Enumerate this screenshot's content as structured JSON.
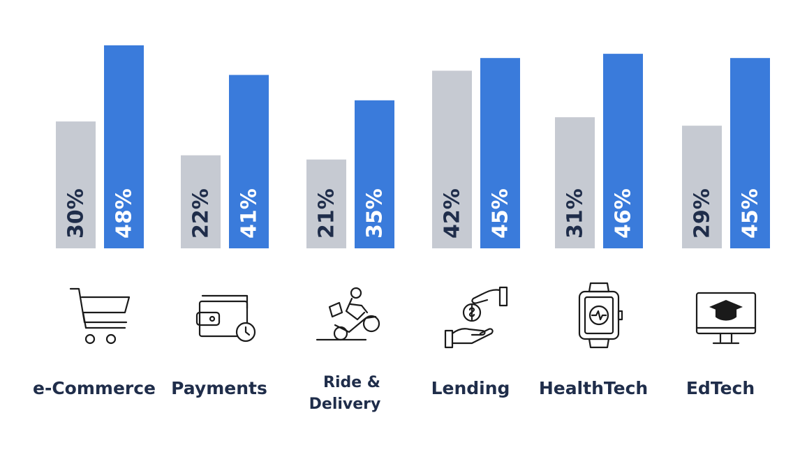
{
  "colors": {
    "baseline_bar": "#c6cad2",
    "highlight_bar": "#3a7bdb",
    "baseline_label": "#1f2d4a",
    "highlight_label": "#ffffff",
    "category_text": "#1f2d4a"
  },
  "chart_data": {
    "type": "bar",
    "title": "",
    "xlabel": "",
    "ylabel": "",
    "ylim": [
      0,
      48
    ],
    "grid": false,
    "categories": [
      "e-Commerce",
      "Payments",
      "Ride & Delivery",
      "Lending",
      "HealthTech",
      "EdTech"
    ],
    "category_lines": [
      [
        "e-Commerce"
      ],
      [
        "Payments"
      ],
      [
        "Ride &",
        "Delivery"
      ],
      [
        "Lending"
      ],
      [
        "HealthTech"
      ],
      [
        "EdTech"
      ]
    ],
    "category_icons": [
      "shopping-cart-icon",
      "wallet-icon",
      "delivery-scooter-icon",
      "lending-hands-coin-icon",
      "smartwatch-icon",
      "graduation-cap-monitor-icon"
    ],
    "series": [
      {
        "values": [
          30,
          22,
          21,
          42,
          31,
          29
        ],
        "labels": [
          "30%",
          "22%",
          "21%",
          "42%",
          "31%",
          "29%"
        ]
      },
      {
        "values": [
          48,
          41,
          35,
          45,
          46,
          45
        ],
        "labels": [
          "48%",
          "41%",
          "35%",
          "45%",
          "46%",
          "45%"
        ]
      }
    ]
  }
}
